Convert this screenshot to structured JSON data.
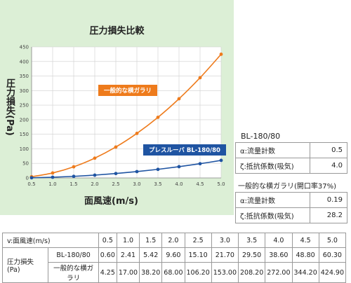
{
  "chart_data": {
    "type": "line",
    "title": "圧力損失比較",
    "xlabel": "面風速(m/s)",
    "ylabel": "圧力損失(Pa)",
    "x": [
      0.5,
      1.0,
      1.5,
      2.0,
      2.5,
      3.0,
      3.5,
      4.0,
      4.5,
      5.0
    ],
    "xticks": [
      "0.5",
      "1.0",
      "1.5",
      "2.0",
      "2.5",
      "3.0",
      "3.5",
      "4.0",
      "4.5",
      "5.0"
    ],
    "yticks": [
      0,
      50,
      100,
      150,
      200,
      250,
      300,
      350,
      400,
      450
    ],
    "xlim": [
      0.5,
      5.0
    ],
    "ylim": [
      0,
      450
    ],
    "grid": true,
    "series": [
      {
        "name": "一般的な横ガラリ",
        "color": "#ee7b1c",
        "values": [
          4.25,
          17.0,
          38.2,
          68.0,
          106.2,
          153.0,
          208.2,
          272.0,
          344.2,
          424.9
        ]
      },
      {
        "name": "プレスルーバ BL-180/80",
        "color": "#1f54a2",
        "values": [
          0.6,
          2.41,
          5.42,
          9.6,
          15.1,
          21.7,
          29.5,
          38.6,
          48.8,
          60.3
        ]
      }
    ]
  },
  "bl": {
    "title": "BL-180/80",
    "rows": [
      {
        "label": "α:流量計数",
        "value": "0.5"
      },
      {
        "label": "ζ:抵抗係数(吸気)",
        "value": "4.0"
      }
    ]
  },
  "general": {
    "title": "一般的な横ガラリ(開口率37%)",
    "rows": [
      {
        "label": "α:流量計数",
        "value": "0.19"
      },
      {
        "label": "ζ:抵抗係数(吸気)",
        "value": "28.2"
      }
    ]
  },
  "table": {
    "header_label": "v:面風速(m/s)",
    "speeds": [
      "0.5",
      "1.0",
      "1.5",
      "2.0",
      "2.5",
      "3.0",
      "3.5",
      "4.0",
      "4.5",
      "5.0"
    ],
    "group_label": "圧力損失(Pa)",
    "rows": [
      {
        "label": "BL-180/80",
        "values": [
          "0.60",
          "2.41",
          "5.42",
          "9.60",
          "15.10",
          "21.70",
          "29.50",
          "38.60",
          "48.80",
          "60.30"
        ]
      },
      {
        "label": "一般的な横ガラリ",
        "values": [
          "4.25",
          "17.00",
          "38.20",
          "68.00",
          "106.20",
          "153.00",
          "208.20",
          "272.00",
          "344.20",
          "424.90"
        ]
      }
    ]
  }
}
